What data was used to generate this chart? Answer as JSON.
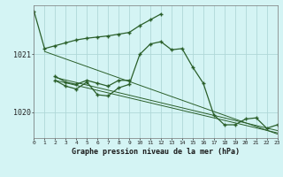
{
  "title": "Graphe pression niveau de la mer (hPa)",
  "bg_color": "#d4f4f4",
  "line_color": "#2a5f2a",
  "grid_color": "#b0d8d8",
  "xlim": [
    0,
    23
  ],
  "ylim": [
    1019.55,
    1021.85
  ],
  "yticks": [
    1020,
    1021
  ],
  "xticks": [
    0,
    1,
    2,
    3,
    4,
    5,
    6,
    7,
    8,
    9,
    10,
    11,
    12,
    13,
    14,
    15,
    16,
    17,
    18,
    19,
    20,
    21,
    22,
    23
  ],
  "series1_x": [
    0,
    1,
    2,
    3,
    4,
    5,
    6,
    7,
    8,
    9,
    10,
    11,
    12
  ],
  "series1_y": [
    1021.75,
    1021.1,
    1021.15,
    1021.2,
    1021.25,
    1021.28,
    1021.3,
    1021.32,
    1021.35,
    1021.38,
    1021.5,
    1021.6,
    1021.7
  ],
  "series2_x": [
    2,
    3,
    4,
    5,
    6,
    7,
    8,
    9,
    10,
    11,
    12,
    13,
    14,
    15,
    16,
    17,
    18,
    19,
    20,
    21,
    22,
    23
  ],
  "series2_y": [
    1020.55,
    1020.45,
    1020.4,
    1020.52,
    1020.3,
    1020.28,
    1020.42,
    1020.48,
    1021.0,
    1021.18,
    1021.22,
    1021.08,
    1021.1,
    1020.78,
    1020.5,
    1019.95,
    1019.78,
    1019.78,
    1019.88,
    1019.9,
    1019.72,
    1019.78
  ],
  "series3_x": [
    2,
    3,
    4,
    5,
    6,
    7,
    8,
    9
  ],
  "series3_y": [
    1020.62,
    1020.52,
    1020.48,
    1020.55,
    1020.5,
    1020.45,
    1020.55,
    1020.55
  ],
  "series4_x": [
    7,
    8
  ],
  "series4_y": [
    1020.45,
    1020.5
  ],
  "trend1_x": [
    1,
    23
  ],
  "trend1_y": [
    1021.05,
    1019.62
  ],
  "trend2_x": [
    2,
    23
  ],
  "trend2_y": [
    1020.6,
    1019.68
  ],
  "trend3_x": [
    2,
    23
  ],
  "trend3_y": [
    1020.55,
    1019.64
  ]
}
